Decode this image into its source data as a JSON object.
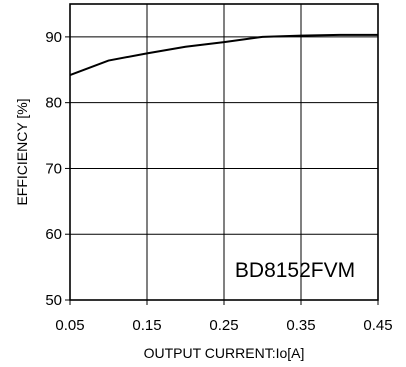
{
  "chart_data": {
    "type": "line",
    "title": "",
    "xlabel": "OUTPUT CURRENT:Io[A]",
    "ylabel": "EFFICIENCY [%]",
    "xlim": [
      0.05,
      0.45
    ],
    "ylim": [
      50,
      95
    ],
    "xticks": [
      0.05,
      0.15,
      0.25,
      0.35,
      0.45
    ],
    "xtick_labels": [
      "0.05",
      "0.15",
      "0.25",
      "0.35",
      "0.45"
    ],
    "yticks": [
      50,
      60,
      70,
      80,
      90
    ],
    "ytick_labels": [
      "50",
      "60",
      "70",
      "80",
      "90"
    ],
    "grid": true,
    "annotation": "BD8152FVM",
    "series": [
      {
        "x": [
          0.05,
          0.1,
          0.15,
          0.2,
          0.25,
          0.3,
          0.35,
          0.4,
          0.45
        ],
        "y": [
          84.2,
          86.4,
          87.5,
          88.5,
          89.2,
          90.0,
          90.2,
          90.3,
          90.3
        ]
      }
    ]
  }
}
